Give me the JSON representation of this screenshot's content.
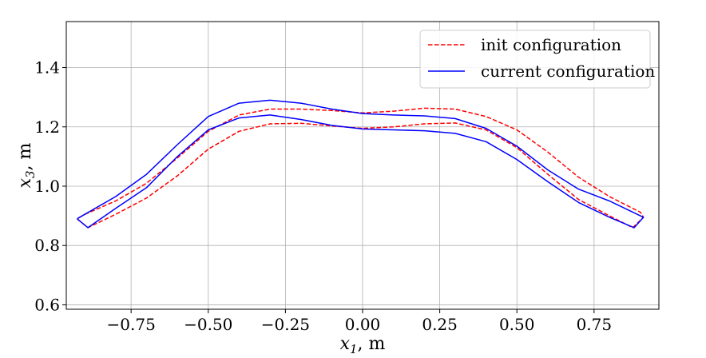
{
  "chart_data": {
    "type": "line",
    "title": "",
    "xlabel": "x",
    "xlabel_sub": "1",
    "xlabel_unit": ", m",
    "ylabel": "x",
    "ylabel_sub": "3",
    "ylabel_unit": ", m",
    "xlim": [
      -0.96,
      0.96
    ],
    "ylim": [
      0.585,
      1.555
    ],
    "xticks": [
      -0.75,
      -0.5,
      -0.25,
      0.0,
      0.25,
      0.5,
      0.75
    ],
    "xtick_labels": [
      "−0.75",
      "−0.50",
      "−0.25",
      "0.00",
      "0.25",
      "0.50",
      "0.75"
    ],
    "yticks": [
      0.6,
      0.8,
      1.0,
      1.2,
      1.4
    ],
    "ytick_labels": [
      "0.6",
      "0.8",
      "1.0",
      "1.2",
      "1.4"
    ],
    "grid": true,
    "legend_position": "top-right",
    "series": [
      {
        "name": "init configuration",
        "color": "#ff0000",
        "style": "dashed",
        "x": [
          -0.9,
          -0.8,
          -0.7,
          -0.6,
          -0.5,
          -0.4,
          -0.3,
          -0.2,
          -0.1,
          0.0,
          0.1,
          0.2,
          0.3,
          0.4,
          0.5,
          0.6,
          0.7,
          0.8,
          0.9,
          0.91,
          0.875,
          0.8,
          0.7,
          0.6,
          0.5,
          0.4,
          0.3,
          0.2,
          0.1,
          0.0,
          -0.1,
          -0.2,
          -0.3,
          -0.4,
          -0.5,
          -0.6,
          -0.7,
          -0.8,
          -0.89,
          -0.925,
          -0.9
        ],
        "y": [
          0.905,
          0.95,
          1.01,
          1.095,
          1.185,
          1.24,
          1.26,
          1.26,
          1.255,
          1.247,
          1.253,
          1.263,
          1.26,
          1.235,
          1.19,
          1.115,
          1.03,
          0.965,
          0.912,
          0.895,
          0.86,
          0.9,
          0.955,
          1.04,
          1.13,
          1.19,
          1.213,
          1.21,
          1.2,
          1.195,
          1.203,
          1.212,
          1.21,
          1.185,
          1.125,
          1.035,
          0.96,
          0.905,
          0.86,
          0.89,
          0.905
        ]
      },
      {
        "name": "current configuration",
        "color": "#0000ff",
        "style": "solid",
        "x": [
          -0.925,
          -0.8,
          -0.7,
          -0.6,
          -0.5,
          -0.4,
          -0.3,
          -0.2,
          -0.1,
          0.0,
          0.1,
          0.2,
          0.3,
          0.4,
          0.5,
          0.6,
          0.7,
          0.8,
          0.91,
          0.88,
          0.8,
          0.7,
          0.6,
          0.5,
          0.4,
          0.3,
          0.2,
          0.1,
          0.0,
          -0.1,
          -0.2,
          -0.3,
          -0.4,
          -0.5,
          -0.6,
          -0.7,
          -0.8,
          -0.89,
          -0.925
        ],
        "y": [
          0.89,
          0.965,
          1.04,
          1.14,
          1.235,
          1.28,
          1.29,
          1.28,
          1.26,
          1.245,
          1.24,
          1.237,
          1.228,
          1.195,
          1.135,
          1.055,
          0.99,
          0.95,
          0.895,
          0.86,
          0.895,
          0.945,
          1.015,
          1.09,
          1.15,
          1.178,
          1.187,
          1.19,
          1.193,
          1.205,
          1.225,
          1.24,
          1.23,
          1.19,
          1.1,
          0.995,
          0.925,
          0.86,
          0.89
        ]
      }
    ]
  }
}
